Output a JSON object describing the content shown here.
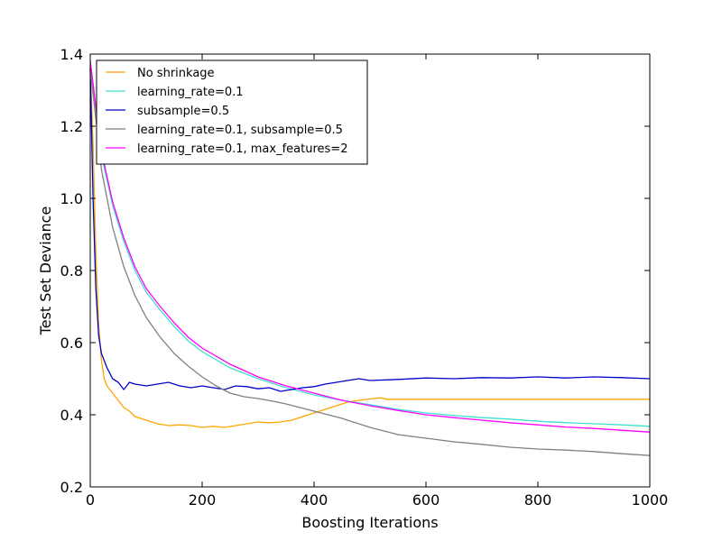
{
  "chart_data": {
    "type": "line",
    "title": "",
    "xlabel": "Boosting Iterations",
    "ylabel": "Test Set Deviance",
    "xlim": [
      0,
      1000
    ],
    "ylim": [
      0.2,
      1.4
    ],
    "xticks": [
      0,
      200,
      400,
      600,
      800,
      1000
    ],
    "xtick_labels": [
      "0",
      "200",
      "400",
      "600",
      "800",
      "1000"
    ],
    "yticks": [
      0.2,
      0.4,
      0.6,
      0.8,
      1.0,
      1.2,
      1.4
    ],
    "ytick_labels": [
      "0.2",
      "0.4",
      "0.6",
      "0.8",
      "1.0",
      "1.2",
      "1.4"
    ],
    "grid": false,
    "legend_position": "top-left",
    "series": [
      {
        "name": "No shrinkage",
        "color": "#FFA500",
        "points": [
          [
            0,
            1.36
          ],
          [
            5,
            1.15
          ],
          [
            10,
            0.85
          ],
          [
            15,
            0.65
          ],
          [
            20,
            0.55
          ],
          [
            25,
            0.5
          ],
          [
            30,
            0.48
          ],
          [
            40,
            0.46
          ],
          [
            50,
            0.44
          ],
          [
            60,
            0.42
          ],
          [
            70,
            0.41
          ],
          [
            80,
            0.395
          ],
          [
            100,
            0.385
          ],
          [
            120,
            0.375
          ],
          [
            140,
            0.37
          ],
          [
            160,
            0.372
          ],
          [
            180,
            0.37
          ],
          [
            200,
            0.365
          ],
          [
            220,
            0.368
          ],
          [
            240,
            0.365
          ],
          [
            260,
            0.37
          ],
          [
            280,
            0.375
          ],
          [
            300,
            0.38
          ],
          [
            320,
            0.378
          ],
          [
            340,
            0.38
          ],
          [
            360,
            0.385
          ],
          [
            380,
            0.395
          ],
          [
            400,
            0.405
          ],
          [
            420,
            0.415
          ],
          [
            440,
            0.425
          ],
          [
            460,
            0.435
          ],
          [
            480,
            0.44
          ],
          [
            500,
            0.444
          ],
          [
            520,
            0.447
          ],
          [
            530,
            0.443
          ],
          [
            600,
            0.443
          ],
          [
            700,
            0.443
          ],
          [
            800,
            0.443
          ],
          [
            900,
            0.443
          ],
          [
            1000,
            0.443
          ]
        ]
      },
      {
        "name": "learning_rate=0.1",
        "color": "#40E0D0",
        "points": [
          [
            0,
            1.38
          ],
          [
            20,
            1.12
          ],
          [
            40,
            0.98
          ],
          [
            60,
            0.88
          ],
          [
            80,
            0.8
          ],
          [
            100,
            0.74
          ],
          [
            125,
            0.69
          ],
          [
            150,
            0.645
          ],
          [
            175,
            0.605
          ],
          [
            200,
            0.575
          ],
          [
            250,
            0.53
          ],
          [
            300,
            0.5
          ],
          [
            350,
            0.475
          ],
          [
            400,
            0.455
          ],
          [
            450,
            0.44
          ],
          [
            500,
            0.428
          ],
          [
            550,
            0.415
          ],
          [
            600,
            0.405
          ],
          [
            650,
            0.398
          ],
          [
            700,
            0.392
          ],
          [
            750,
            0.388
          ],
          [
            800,
            0.382
          ],
          [
            850,
            0.378
          ],
          [
            900,
            0.375
          ],
          [
            950,
            0.372
          ],
          [
            1000,
            0.368
          ]
        ]
      },
      {
        "name": "subsample=0.5",
        "color": "#0000CD",
        "points": [
          [
            0,
            1.36
          ],
          [
            5,
            1.0
          ],
          [
            10,
            0.75
          ],
          [
            15,
            0.62
          ],
          [
            20,
            0.57
          ],
          [
            30,
            0.53
          ],
          [
            40,
            0.5
          ],
          [
            50,
            0.49
          ],
          [
            60,
            0.47
          ],
          [
            70,
            0.49
          ],
          [
            80,
            0.485
          ],
          [
            100,
            0.48
          ],
          [
            120,
            0.485
          ],
          [
            140,
            0.49
          ],
          [
            160,
            0.48
          ],
          [
            180,
            0.475
          ],
          [
            200,
            0.48
          ],
          [
            220,
            0.475
          ],
          [
            240,
            0.47
          ],
          [
            260,
            0.48
          ],
          [
            280,
            0.478
          ],
          [
            300,
            0.472
          ],
          [
            320,
            0.475
          ],
          [
            340,
            0.465
          ],
          [
            360,
            0.47
          ],
          [
            380,
            0.475
          ],
          [
            400,
            0.478
          ],
          [
            420,
            0.485
          ],
          [
            440,
            0.49
          ],
          [
            460,
            0.495
          ],
          [
            480,
            0.5
          ],
          [
            500,
            0.495
          ],
          [
            550,
            0.498
          ],
          [
            600,
            0.502
          ],
          [
            650,
            0.5
          ],
          [
            700,
            0.503
          ],
          [
            750,
            0.502
          ],
          [
            800,
            0.505
          ],
          [
            850,
            0.502
          ],
          [
            900,
            0.505
          ],
          [
            950,
            0.503
          ],
          [
            1000,
            0.5
          ]
        ]
      },
      {
        "name": "learning_rate=0.1, subsample=0.5",
        "color": "#808080",
        "points": [
          [
            0,
            1.36
          ],
          [
            20,
            1.08
          ],
          [
            40,
            0.92
          ],
          [
            60,
            0.81
          ],
          [
            80,
            0.73
          ],
          [
            100,
            0.67
          ],
          [
            125,
            0.615
          ],
          [
            150,
            0.57
          ],
          [
            175,
            0.535
          ],
          [
            200,
            0.505
          ],
          [
            225,
            0.48
          ],
          [
            250,
            0.46
          ],
          [
            275,
            0.45
          ],
          [
            300,
            0.445
          ],
          [
            325,
            0.438
          ],
          [
            350,
            0.43
          ],
          [
            400,
            0.41
          ],
          [
            450,
            0.39
          ],
          [
            500,
            0.365
          ],
          [
            550,
            0.345
          ],
          [
            600,
            0.335
          ],
          [
            650,
            0.325
          ],
          [
            700,
            0.318
          ],
          [
            750,
            0.31
          ],
          [
            800,
            0.305
          ],
          [
            850,
            0.302
          ],
          [
            900,
            0.298
          ],
          [
            950,
            0.292
          ],
          [
            1000,
            0.287
          ]
        ]
      },
      {
        "name": "learning_rate=0.1, max_features=2",
        "color": "#FF00FF",
        "points": [
          [
            0,
            1.38
          ],
          [
            20,
            1.13
          ],
          [
            40,
            0.99
          ],
          [
            60,
            0.89
          ],
          [
            80,
            0.81
          ],
          [
            100,
            0.75
          ],
          [
            125,
            0.7
          ],
          [
            150,
            0.655
          ],
          [
            175,
            0.615
          ],
          [
            200,
            0.585
          ],
          [
            250,
            0.54
          ],
          [
            300,
            0.505
          ],
          [
            350,
            0.48
          ],
          [
            400,
            0.46
          ],
          [
            450,
            0.44
          ],
          [
            500,
            0.425
          ],
          [
            550,
            0.412
          ],
          [
            600,
            0.4
          ],
          [
            650,
            0.392
          ],
          [
            700,
            0.385
          ],
          [
            750,
            0.378
          ],
          [
            800,
            0.372
          ],
          [
            850,
            0.366
          ],
          [
            900,
            0.362
          ],
          [
            950,
            0.357
          ],
          [
            1000,
            0.352
          ]
        ]
      }
    ]
  }
}
